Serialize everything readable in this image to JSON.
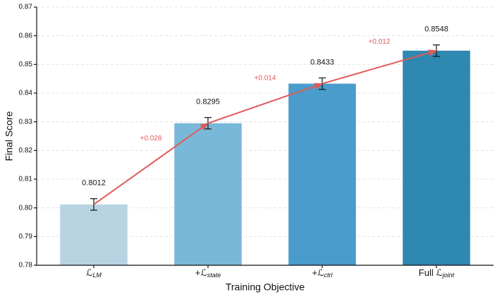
{
  "chart_data": {
    "type": "bar",
    "xlabel": "Training Objective",
    "ylabel": "Final Score",
    "categories": [
      {
        "text": "ℒ",
        "sub": "LM"
      },
      {
        "text": "+ℒ",
        "sub": "state"
      },
      {
        "text": "+ℒ",
        "sub": "ctrl"
      },
      {
        "text": "Full ℒ",
        "sub": "joint"
      }
    ],
    "values": [
      0.8012,
      0.8295,
      0.8433,
      0.8548
    ],
    "errors": [
      0.002,
      0.002,
      0.002,
      0.002
    ],
    "colors": [
      "#b8d4e3",
      "#7ab8d9",
      "#4a9ccc",
      "#2e88b0"
    ],
    "annotations": [
      "+0.028",
      "+0.014",
      "+0.012"
    ],
    "annotation_color": "#e05a57",
    "ylim": [
      0.78,
      0.87
    ],
    "yticks": [
      0.78,
      0.79,
      {
        "value": 0.8,
        "label": "0.80"
      },
      0.81,
      0.82,
      0.83,
      0.84,
      0.85,
      0.86,
      0.87
    ],
    "grid": true
  }
}
